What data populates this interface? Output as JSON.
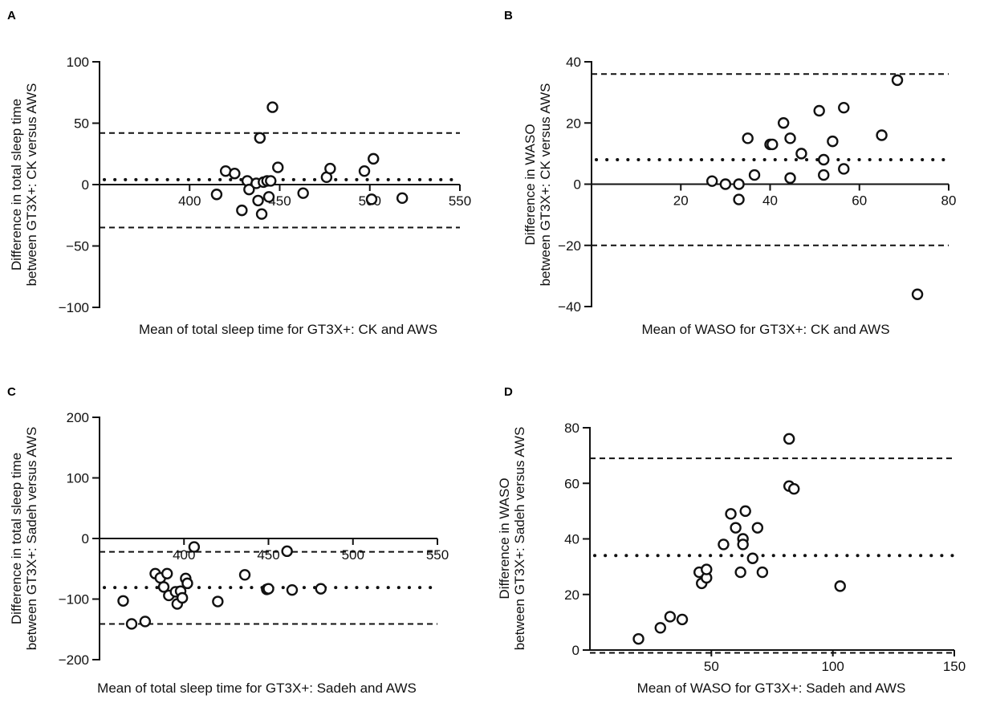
{
  "chart_data": [
    {
      "panel": "A",
      "type": "scatter",
      "xlabel": "Mean of total sleep time for GT3X+: CK and AWS",
      "ylabel": [
        "Difference in total sleep time",
        "between GT3X+: CK versus AWS"
      ],
      "xlim": [
        350,
        550
      ],
      "ylim": [
        -100,
        100
      ],
      "xticks": [
        400,
        450,
        500,
        550
      ],
      "yticks": [
        -100,
        -50,
        0,
        50,
        100
      ],
      "mean_line": 4,
      "loa_upper": 42,
      "loa_lower": -35,
      "points": [
        [
          415,
          -8
        ],
        [
          420,
          11
        ],
        [
          425,
          9
        ],
        [
          429,
          -21
        ],
        [
          432,
          3
        ],
        [
          433,
          -4
        ],
        [
          437,
          1
        ],
        [
          438,
          -13
        ],
        [
          439,
          38
        ],
        [
          440,
          -24
        ],
        [
          441,
          2
        ],
        [
          443,
          3
        ],
        [
          444,
          -10
        ],
        [
          445,
          3
        ],
        [
          446,
          63
        ],
        [
          449,
          14
        ],
        [
          463,
          -7
        ],
        [
          476,
          6
        ],
        [
          478,
          13
        ],
        [
          497,
          11
        ],
        [
          501,
          -12
        ],
        [
          502,
          21
        ],
        [
          518,
          -11
        ]
      ]
    },
    {
      "panel": "B",
      "type": "scatter",
      "xlabel": "Mean of WASO for GT3X+: CK and AWS",
      "ylabel": [
        "Difference in WASO",
        "between GT3X+: CK versus AWS"
      ],
      "xlim": [
        0,
        80
      ],
      "ylim": [
        -40,
        40
      ],
      "xticks": [
        20,
        40,
        60,
        80
      ],
      "yticks": [
        -40,
        -20,
        0,
        20,
        40
      ],
      "mean_line": 8,
      "loa_upper": 36,
      "loa_lower": -20,
      "points": [
        [
          27,
          1
        ],
        [
          30,
          0
        ],
        [
          33,
          0
        ],
        [
          33,
          -5
        ],
        [
          35,
          15
        ],
        [
          36.5,
          3
        ],
        [
          40,
          13
        ],
        [
          40.5,
          13
        ],
        [
          43,
          20
        ],
        [
          44.5,
          15
        ],
        [
          44.5,
          2
        ],
        [
          47,
          10
        ],
        [
          51,
          24
        ],
        [
          52,
          8
        ],
        [
          52,
          3
        ],
        [
          54,
          14
        ],
        [
          56.5,
          25
        ],
        [
          56.5,
          5
        ],
        [
          65,
          16
        ],
        [
          68.5,
          34
        ],
        [
          73,
          -36
        ]
      ]
    },
    {
      "panel": "C",
      "type": "scatter",
      "xlabel": "Mean of total sleep time for GT3X+: Sadeh and AWS",
      "ylabel": [
        "Difference in total sleep time",
        "between GT3X+: Sadeh versus AWS"
      ],
      "xlim": [
        350,
        550
      ],
      "ylim": [
        -200,
        200
      ],
      "xticks": [
        400,
        450,
        500,
        550
      ],
      "yticks": [
        -200,
        -100,
        0,
        100,
        200
      ],
      "mean_line": -81,
      "loa_upper": -22,
      "loa_lower": -141,
      "points": [
        [
          364,
          -103
        ],
        [
          369,
          -141
        ],
        [
          377,
          -137
        ],
        [
          383,
          -58
        ],
        [
          386,
          -65
        ],
        [
          388,
          -80
        ],
        [
          390,
          -58
        ],
        [
          391,
          -94
        ],
        [
          395,
          -88
        ],
        [
          396,
          -108
        ],
        [
          398,
          -87
        ],
        [
          399,
          -98
        ],
        [
          401,
          -66
        ],
        [
          402,
          -74
        ],
        [
          406,
          -14
        ],
        [
          420,
          -104
        ],
        [
          436,
          -60
        ],
        [
          449,
          -84
        ],
        [
          450,
          -83
        ],
        [
          461,
          -21
        ],
        [
          464,
          -85
        ],
        [
          481,
          -83
        ]
      ]
    },
    {
      "panel": "D",
      "type": "scatter",
      "xlabel": "Mean of WASO for GT3X+: Sadeh and AWS",
      "ylabel": [
        "Difference in WASO",
        "between GT3X+: Sadeh versus AWS"
      ],
      "xlim": [
        0,
        150
      ],
      "ylim": [
        0,
        80
      ],
      "xticks": [
        50,
        100,
        150
      ],
      "yticks": [
        0,
        20,
        40,
        60,
        80
      ],
      "mean_line": 34,
      "loa_upper": 69,
      "loa_lower": -1,
      "points": [
        [
          20,
          4
        ],
        [
          29,
          8
        ],
        [
          33,
          12
        ],
        [
          38,
          11
        ],
        [
          45,
          28
        ],
        [
          46,
          24
        ],
        [
          48,
          26
        ],
        [
          48,
          29
        ],
        [
          55,
          38
        ],
        [
          58,
          49
        ],
        [
          60,
          44
        ],
        [
          62,
          28
        ],
        [
          63,
          40
        ],
        [
          63,
          38
        ],
        [
          64,
          50
        ],
        [
          67,
          33
        ],
        [
          69,
          44
        ],
        [
          71,
          28
        ],
        [
          82,
          59
        ],
        [
          82,
          76
        ],
        [
          84,
          58
        ],
        [
          103,
          23
        ]
      ]
    }
  ]
}
